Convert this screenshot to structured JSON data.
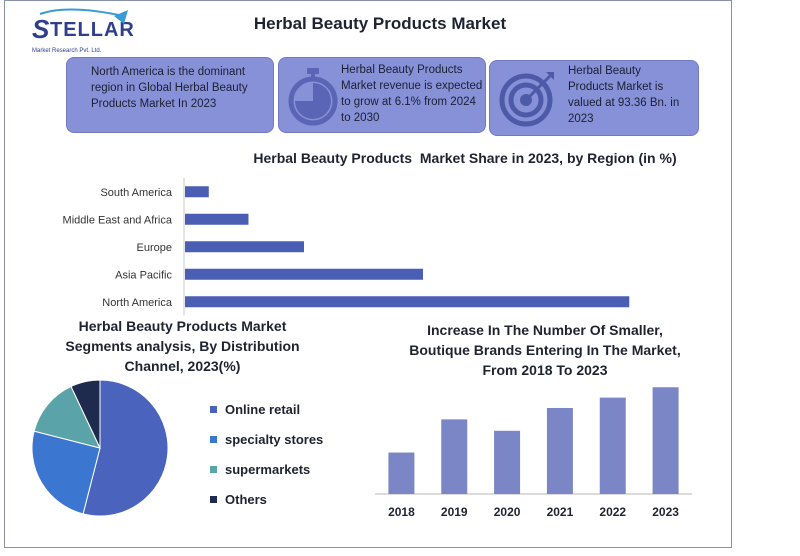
{
  "logo": {
    "name": "STELLAR",
    "tagline": "Market Research Pvt. Ltd."
  },
  "title": "Herbal Beauty Products Market",
  "cards": [
    {
      "text": "North America is the dominant region in Global Herbal Beauty Products Market In 2023"
    },
    {
      "text": "Herbal Beauty Products Market revenue is expected to grow at 6.1% from 2024 to 2030",
      "icon": "stopwatch-icon"
    },
    {
      "text": "Herbal Beauty Products Market is valued at 93.36 Bn. in 2023",
      "icon": "target-icon"
    }
  ],
  "colors": {
    "accent": "#4a5fb3",
    "card": "#8791d8",
    "bar_gray": "#7a86c6",
    "pie": [
      "#4a64bd",
      "#3b77d0",
      "#5aa3a8",
      "#1f2b4e"
    ]
  },
  "chart_data": [
    {
      "type": "bar",
      "orientation": "horizontal",
      "title": "Herbal Beauty Products  Market Share in 2023, by Region (in %)",
      "categories": [
        "South America",
        "Middle East and Africa",
        "Europe",
        "Asia Pacific",
        "North America"
      ],
      "values": [
        3,
        8,
        15,
        30,
        56
      ],
      "xlim": [
        0,
        60
      ]
    },
    {
      "type": "pie",
      "title": "Herbal Beauty Products  Market Segments analysis, By Distribution Channel, 2023(%)",
      "labels": [
        "Online retail",
        "specialty stores",
        "supermarkets",
        "Others"
      ],
      "values": [
        54,
        25,
        14,
        7
      ]
    },
    {
      "type": "bar",
      "title": "Increase In The Number Of Smaller, Boutique Brands Entering In The Market, From 2018 To 2023",
      "categories": [
        "2018",
        "2019",
        "2020",
        "2021",
        "2022",
        "2023"
      ],
      "values": [
        40,
        72,
        61,
        83,
        93,
        103
      ],
      "ylim": [
        0,
        110
      ]
    }
  ]
}
